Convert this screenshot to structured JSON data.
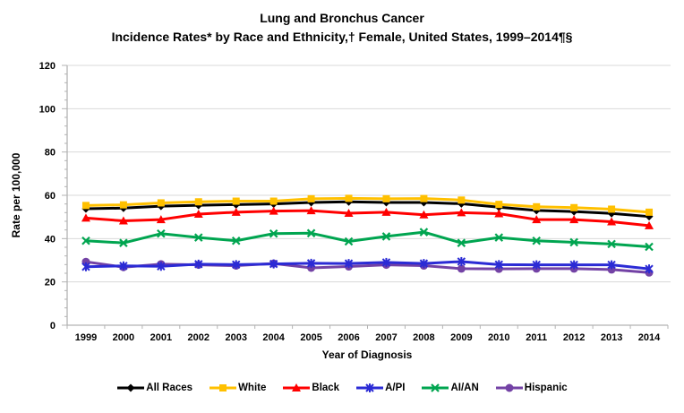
{
  "header": {
    "title_line1": "Lung and Bronchus Cancer",
    "title_line2": "Incidence Rates* by Race and Ethnicity,† Female, United States, 1999–2014¶§"
  },
  "chart_data": {
    "type": "line",
    "title": "Lung and Bronchus Cancer",
    "subtitle": "Incidence Rates* by Race and Ethnicity,† Female, United States, 1999–2014¶§",
    "xlabel": "Year of Diagnosis",
    "ylabel": "Rate per 100,000",
    "ylim": [
      0,
      120
    ],
    "y_major_tick": 20,
    "y_minor_tick": 4,
    "grid": "horizontal-major",
    "legend_position": "bottom",
    "axis_color": "#b3b3b3",
    "gridline_color": "#d9d9d9",
    "categories": [
      1999,
      2000,
      2001,
      2002,
      2003,
      2004,
      2005,
      2006,
      2007,
      2008,
      2009,
      2010,
      2011,
      2012,
      2013,
      2014
    ],
    "series": [
      {
        "name": "All Races",
        "color": "#000000",
        "marker": "diamond",
        "values": [
          53.8,
          54.1,
          55.0,
          55.4,
          55.7,
          56.0,
          56.7,
          57.0,
          56.7,
          56.7,
          56.1,
          54.5,
          53.0,
          52.5,
          51.6,
          50.2
        ]
      },
      {
        "name": "White",
        "color": "#ffc000",
        "marker": "square",
        "values": [
          55.3,
          55.6,
          56.5,
          57.0,
          57.3,
          57.3,
          58.4,
          58.6,
          58.4,
          58.5,
          57.8,
          55.8,
          54.7,
          54.3,
          53.6,
          52.2
        ]
      },
      {
        "name": "Black",
        "color": "#ff0000",
        "marker": "triangle",
        "values": [
          49.5,
          48.2,
          48.8,
          51.3,
          52.2,
          52.7,
          52.9,
          51.7,
          52.2,
          51.0,
          52.0,
          51.5,
          48.8,
          48.8,
          47.8,
          46.0
        ]
      },
      {
        "name": "A/PI",
        "color": "#2b2bd5",
        "marker": "asterisk",
        "values": [
          27.0,
          27.4,
          27.2,
          28.2,
          28.0,
          28.3,
          28.6,
          28.5,
          29.0,
          28.5,
          29.4,
          28.0,
          27.9,
          27.9,
          27.9,
          26.0
        ]
      },
      {
        "name": "AI/AN",
        "color": "#00a550",
        "marker": "x",
        "values": [
          39.0,
          38.0,
          42.3,
          40.5,
          39.0,
          42.3,
          42.5,
          38.7,
          41.0,
          43.0,
          38.0,
          40.5,
          39.0,
          38.3,
          37.5,
          36.2
        ]
      },
      {
        "name": "Hispanic",
        "color": "#7342a5",
        "marker": "circle",
        "values": [
          29.3,
          26.8,
          28.2,
          27.9,
          27.5,
          28.5,
          26.5,
          27.1,
          27.9,
          27.5,
          26.1,
          26.0,
          26.1,
          26.1,
          25.7,
          24.3
        ]
      }
    ],
    "draw_order": [
      0,
      1,
      2,
      5,
      4,
      3
    ]
  }
}
